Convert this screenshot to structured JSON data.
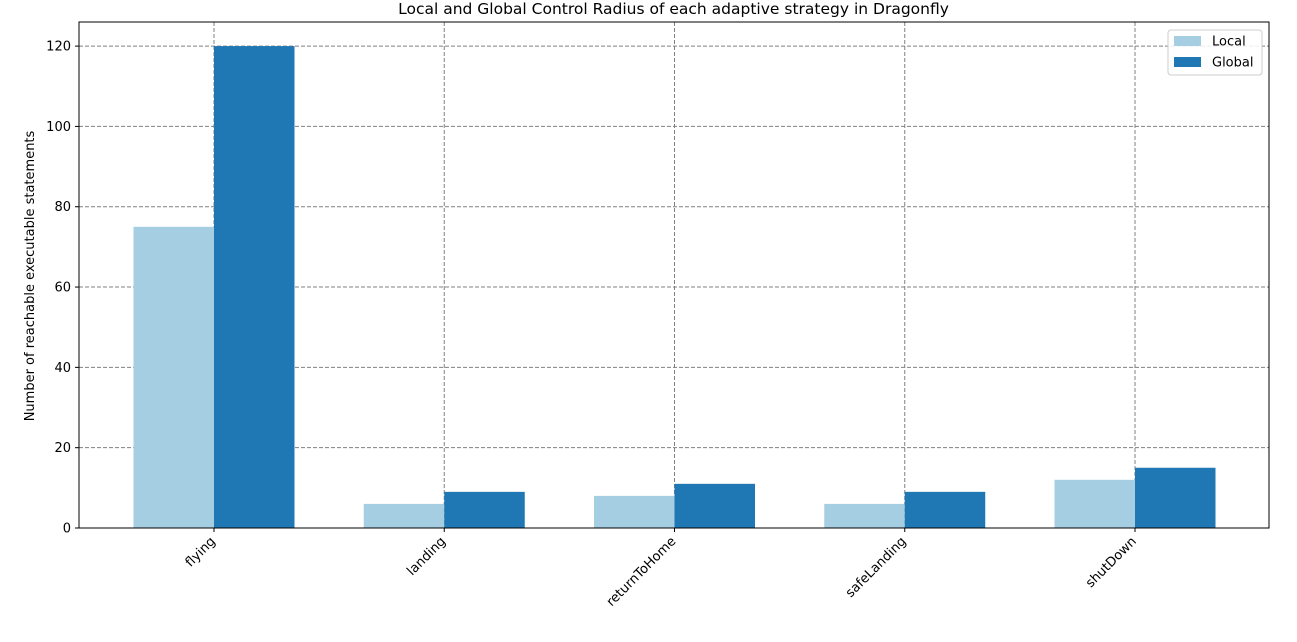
{
  "chart_data": {
    "type": "bar",
    "title": "Local and Global Control Radius of each adaptive strategy in Dragonfly",
    "xlabel": "",
    "ylabel": "Number of reachable executable statements",
    "categories": [
      "flying",
      "landing",
      "returnToHome",
      "safeLanding",
      "shutDown"
    ],
    "series": [
      {
        "name": "Local",
        "color": "#a6cee3",
        "values": [
          75,
          6,
          8,
          6,
          12
        ]
      },
      {
        "name": "Global",
        "color": "#1f78b4",
        "values": [
          120,
          9,
          11,
          9,
          15
        ]
      }
    ],
    "ylim": [
      0,
      126
    ],
    "yticks": [
      0,
      20,
      40,
      60,
      80,
      100,
      120
    ],
    "grid": true,
    "grid_style": "dashed",
    "grid_color": "#808080",
    "legend_position": "top-right",
    "xtick_rotation": -45
  }
}
